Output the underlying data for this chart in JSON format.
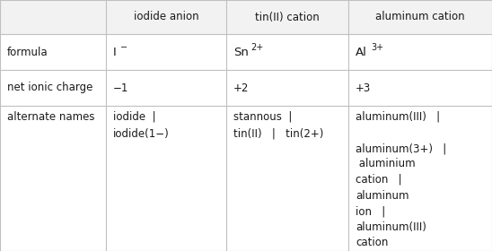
{
  "col_headers": [
    "",
    "iodide anion",
    "tin(II) cation",
    "aluminum cation"
  ],
  "row_labels": [
    "formula",
    "net ionic charge",
    "alternate names"
  ],
  "charge_row": [
    "−1",
    "+2",
    "+3"
  ],
  "alt_names_col1": "iodide  |\niodide(1−)",
  "alt_names_col2": "stannous  |\ntin(II)   |   tin(2+)",
  "alt_names_col3": "aluminum(III)   |\n\naluminum(3+)   |\n aluminium\ncation   |\naluminum\nion   |\naluminum(III)\ncation",
  "bg_color": "#ffffff",
  "header_bg": "#f2f2f2",
  "border_color": "#c0c0c0",
  "text_color": "#1a1a1a",
  "font_size": 8.5
}
